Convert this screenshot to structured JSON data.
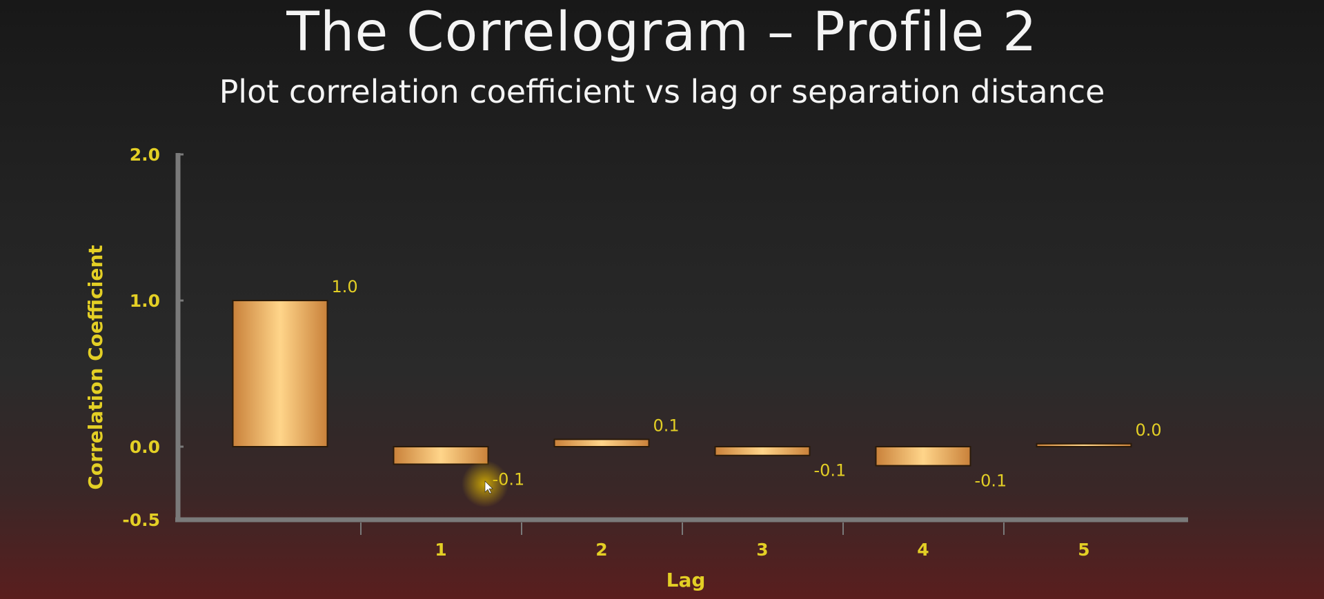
{
  "title": "The Correlogram – Profile 2",
  "subtitle": "Plot correlation coefficient vs lag or separation distance",
  "chart_data": {
    "type": "bar",
    "categories": [
      "",
      "1",
      "2",
      "3",
      "4",
      "5"
    ],
    "values": [
      1.0,
      -0.12,
      0.05,
      -0.06,
      -0.13,
      0.02
    ],
    "data_labels": [
      "1.0",
      "-0.1",
      "0.1",
      "-0.1",
      "-0.1",
      "0.0"
    ],
    "xlabel": "Lag",
    "ylabel": "Correlation Coefficient",
    "yticks": [
      "2.0",
      "1.0",
      "0.0",
      "-0.5"
    ],
    "ylim": [
      -0.5,
      2.0
    ],
    "grid": false,
    "colors": {
      "bar_edge": "#c9813a",
      "bar_center": "#ffd58a",
      "axis": "#7a7a7a",
      "label": "#e3cf25"
    }
  }
}
